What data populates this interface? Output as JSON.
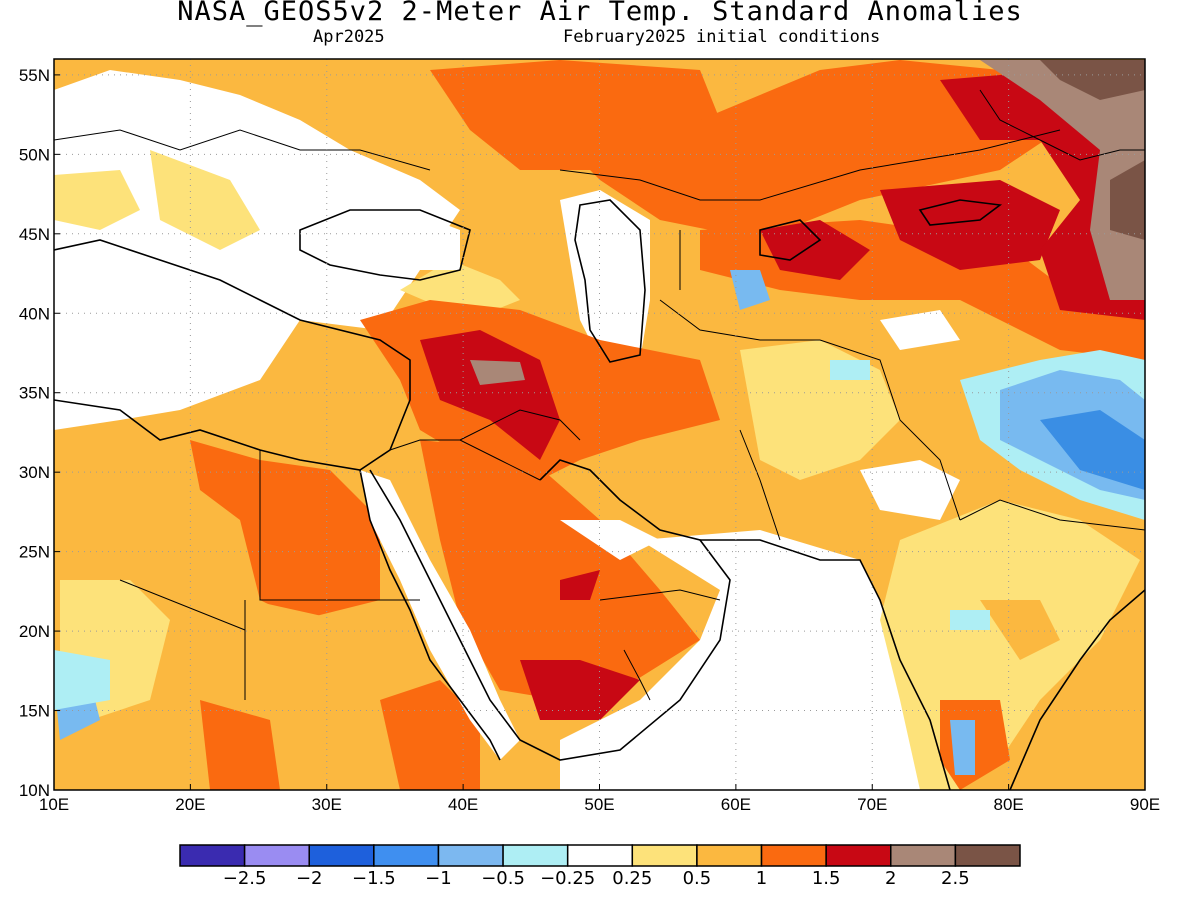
{
  "header": {
    "title": "NASA_GEOS5v2 2-Meter Air Temp. Standard Anomalies",
    "valid_month": "Apr2025",
    "init_note": "February2025 initial conditions"
  },
  "map": {
    "lon_range": [
      10,
      90
    ],
    "lat_range": [
      10,
      56
    ],
    "lon_ticks": [
      "10E",
      "20E",
      "30E",
      "40E",
      "50E",
      "60E",
      "70E",
      "80E",
      "90E"
    ],
    "lat_ticks": [
      "55N",
      "50N",
      "45N",
      "40N",
      "35N",
      "30N",
      "25N",
      "20N",
      "15N",
      "10N"
    ],
    "grid": true,
    "colors": {
      "land_white": "#ffffff",
      "warm_1": "#fde27a",
      "warm_2": "#fbb840",
      "warm_3": "#fa6a10",
      "warm_4": "#c80814",
      "warm_5": "#a98777",
      "warm_6": "#7a5446",
      "cool_1": "#aeeef4",
      "cool_2": "#78baf0",
      "cool_3": "#3a8ee4"
    }
  },
  "colorbar": {
    "colors": [
      "#3a2bb0",
      "#9a8cf2",
      "#1e60dc",
      "#3f8ff0",
      "#7cb8f0",
      "#aeeef4",
      "#ffffff",
      "#fde27a",
      "#fbb840",
      "#fa6a10",
      "#c80814",
      "#a98777",
      "#7a5446"
    ],
    "labels": [
      "-2.5",
      "-2",
      "-1.5",
      "-1",
      "-0.5",
      "-0.25",
      "0.25",
      "0.5",
      "1",
      "1.5",
      "2",
      "2.5"
    ]
  }
}
